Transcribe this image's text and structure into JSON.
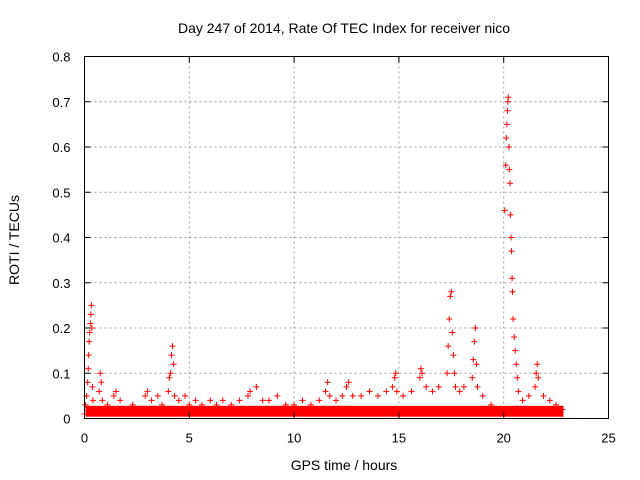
{
  "chart_data": {
    "type": "scatter",
    "title": "Day 247 of 2014, Rate Of TEC Index for receiver nico",
    "xlabel": "GPS time / hours",
    "ylabel": "ROTI / TECUs",
    "xlim": [
      0,
      25
    ],
    "ylim": [
      0,
      0.8
    ],
    "x_ticks": [
      "0",
      "5",
      "10",
      "15",
      "20",
      "25"
    ],
    "y_ticks": [
      "0",
      "0.1",
      "0.2",
      "0.3",
      "0.4",
      "0.5",
      "0.6",
      "0.7",
      "0.8"
    ],
    "grid": true,
    "marker": "+",
    "color": "#ff0000",
    "series": [
      {
        "points": [
          [
            0.0,
            0.01
          ],
          [
            0.05,
            0.03
          ],
          [
            0.1,
            0.05
          ],
          [
            0.15,
            0.08
          ],
          [
            0.18,
            0.11
          ],
          [
            0.2,
            0.14
          ],
          [
            0.22,
            0.17
          ],
          [
            0.25,
            0.19
          ],
          [
            0.28,
            0.21
          ],
          [
            0.3,
            0.23
          ],
          [
            0.33,
            0.25
          ],
          [
            0.35,
            0.2
          ],
          [
            0.38,
            0.07
          ],
          [
            0.4,
            0.04
          ],
          [
            0.45,
            0.02
          ],
          [
            0.7,
            0.06
          ],
          [
            0.75,
            0.1
          ],
          [
            0.8,
            0.08
          ],
          [
            0.85,
            0.04
          ],
          [
            1.1,
            0.03
          ],
          [
            1.4,
            0.05
          ],
          [
            1.5,
            0.06
          ],
          [
            1.7,
            0.04
          ],
          [
            2.0,
            0.02
          ],
          [
            2.3,
            0.03
          ],
          [
            2.6,
            0.02
          ],
          [
            2.9,
            0.05
          ],
          [
            3.0,
            0.06
          ],
          [
            3.2,
            0.04
          ],
          [
            3.5,
            0.05
          ],
          [
            3.7,
            0.03
          ],
          [
            4.0,
            0.06
          ],
          [
            4.05,
            0.09
          ],
          [
            4.1,
            0.1
          ],
          [
            4.15,
            0.14
          ],
          [
            4.2,
            0.16
          ],
          [
            4.25,
            0.12
          ],
          [
            4.3,
            0.05
          ],
          [
            4.5,
            0.04
          ],
          [
            4.8,
            0.05
          ],
          [
            5.0,
            0.03
          ],
          [
            5.3,
            0.04
          ],
          [
            5.6,
            0.03
          ],
          [
            6.0,
            0.04
          ],
          [
            6.3,
            0.03
          ],
          [
            6.6,
            0.04
          ],
          [
            7.0,
            0.03
          ],
          [
            7.4,
            0.04
          ],
          [
            7.8,
            0.05
          ],
          [
            7.9,
            0.06
          ],
          [
            8.2,
            0.07
          ],
          [
            8.5,
            0.04
          ],
          [
            8.8,
            0.04
          ],
          [
            9.2,
            0.05
          ],
          [
            9.6,
            0.03
          ],
          [
            10.0,
            0.03
          ],
          [
            10.4,
            0.04
          ],
          [
            10.8,
            0.03
          ],
          [
            11.2,
            0.04
          ],
          [
            11.5,
            0.06
          ],
          [
            11.6,
            0.08
          ],
          [
            11.7,
            0.05
          ],
          [
            12.0,
            0.04
          ],
          [
            12.3,
            0.05
          ],
          [
            12.5,
            0.07
          ],
          [
            12.6,
            0.08
          ],
          [
            12.8,
            0.05
          ],
          [
            13.2,
            0.05
          ],
          [
            13.6,
            0.06
          ],
          [
            14.0,
            0.05
          ],
          [
            14.4,
            0.06
          ],
          [
            14.7,
            0.07
          ],
          [
            14.8,
            0.09
          ],
          [
            14.85,
            0.1
          ],
          [
            14.9,
            0.06
          ],
          [
            15.2,
            0.05
          ],
          [
            15.6,
            0.06
          ],
          [
            16.0,
            0.09
          ],
          [
            16.05,
            0.11
          ],
          [
            16.1,
            0.1
          ],
          [
            16.3,
            0.07
          ],
          [
            16.6,
            0.06
          ],
          [
            16.9,
            0.07
          ],
          [
            17.3,
            0.1
          ],
          [
            17.35,
            0.16
          ],
          [
            17.4,
            0.22
          ],
          [
            17.45,
            0.27
          ],
          [
            17.5,
            0.28
          ],
          [
            17.55,
            0.19
          ],
          [
            17.6,
            0.14
          ],
          [
            17.65,
            0.1
          ],
          [
            17.7,
            0.07
          ],
          [
            17.9,
            0.06
          ],
          [
            18.1,
            0.07
          ],
          [
            18.5,
            0.09
          ],
          [
            18.55,
            0.13
          ],
          [
            18.6,
            0.17
          ],
          [
            18.65,
            0.2
          ],
          [
            18.7,
            0.12
          ],
          [
            18.75,
            0.07
          ],
          [
            19.0,
            0.05
          ],
          [
            19.4,
            0.03
          ],
          [
            19.8,
            0.02
          ],
          [
            20.05,
            0.46
          ],
          [
            20.1,
            0.56
          ],
          [
            20.12,
            0.62
          ],
          [
            20.15,
            0.65
          ],
          [
            20.18,
            0.68
          ],
          [
            20.2,
            0.7
          ],
          [
            20.22,
            0.71
          ],
          [
            20.25,
            0.6
          ],
          [
            20.27,
            0.55
          ],
          [
            20.3,
            0.52
          ],
          [
            20.32,
            0.45
          ],
          [
            20.35,
            0.4
          ],
          [
            20.37,
            0.37
          ],
          [
            20.4,
            0.31
          ],
          [
            20.42,
            0.28
          ],
          [
            20.45,
            0.22
          ],
          [
            20.5,
            0.18
          ],
          [
            20.55,
            0.15
          ],
          [
            20.6,
            0.12
          ],
          [
            20.65,
            0.09
          ],
          [
            20.7,
            0.06
          ],
          [
            20.9,
            0.04
          ],
          [
            21.2,
            0.05
          ],
          [
            21.5,
            0.07
          ],
          [
            21.55,
            0.1
          ],
          [
            21.6,
            0.12
          ],
          [
            21.65,
            0.09
          ],
          [
            21.9,
            0.05
          ],
          [
            22.2,
            0.04
          ],
          [
            22.5,
            0.03
          ],
          [
            22.7,
            0.02
          ],
          [
            22.8,
            0.02
          ]
        ]
      }
    ]
  }
}
